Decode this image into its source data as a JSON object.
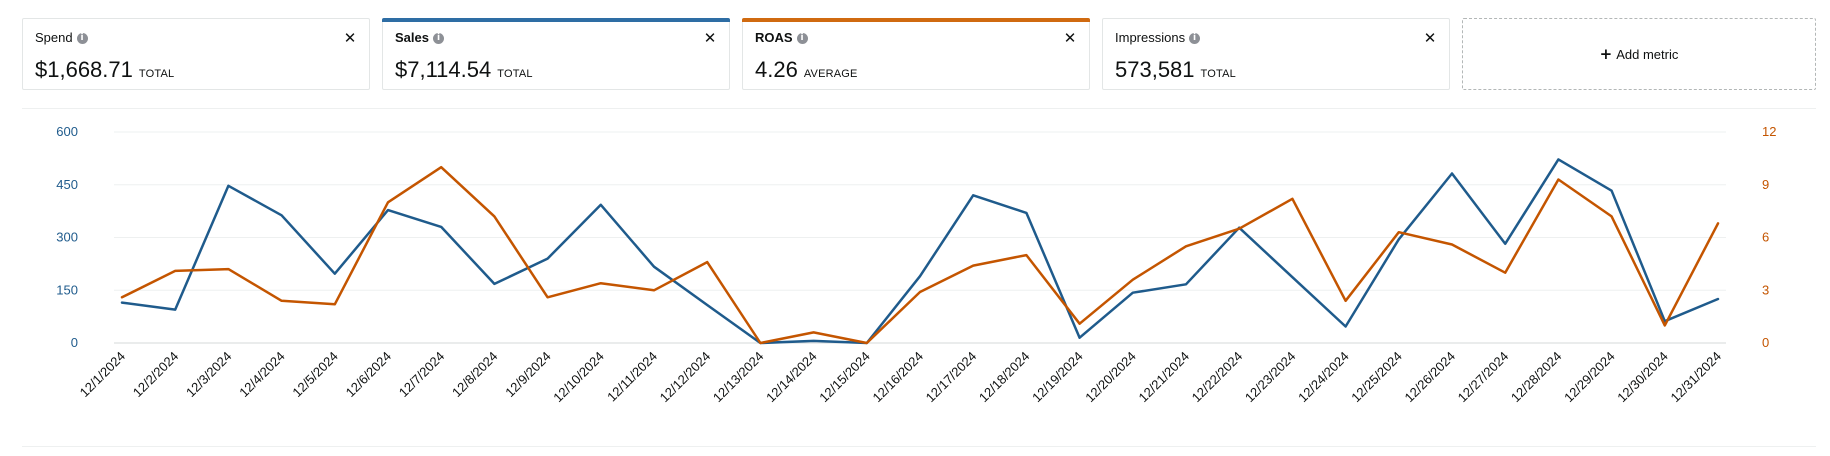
{
  "metrics": [
    {
      "label": "Spend",
      "value": "$1,668.71",
      "suffix": "TOTAL",
      "selected": false,
      "accent": ""
    },
    {
      "label": "Sales",
      "value": "$7,114.54",
      "suffix": "TOTAL",
      "selected": true,
      "accent": "#2e6da4"
    },
    {
      "label": "ROAS",
      "value": "4.26",
      "suffix": "AVERAGE",
      "selected": true,
      "accent": "#d06a10"
    },
    {
      "label": "Impressions",
      "value": "573,581",
      "suffix": "TOTAL",
      "selected": false,
      "accent": ""
    }
  ],
  "add_metric_label": "Add metric",
  "icons": {
    "info": "info-icon",
    "close": "close-icon",
    "add": "plus-icon"
  },
  "chart_data": {
    "type": "line",
    "categories": [
      "12/1/2024",
      "12/2/2024",
      "12/3/2024",
      "12/4/2024",
      "12/5/2024",
      "12/6/2024",
      "12/7/2024",
      "12/8/2024",
      "12/9/2024",
      "12/10/2024",
      "12/11/2024",
      "12/12/2024",
      "12/13/2024",
      "12/14/2024",
      "12/15/2024",
      "12/16/2024",
      "12/17/2024",
      "12/18/2024",
      "12/19/2024",
      "12/20/2024",
      "12/21/2024",
      "12/22/2024",
      "12/23/2024",
      "12/24/2024",
      "12/25/2024",
      "12/26/2024",
      "12/27/2024",
      "12/28/2024",
      "12/29/2024",
      "12/30/2024",
      "12/31/2024"
    ],
    "series": [
      {
        "name": "Sales",
        "axis": "left",
        "color": "#1f5b8c",
        "values": [
          115,
          95,
          447,
          363,
          197,
          378,
          330,
          168,
          240,
          393,
          217,
          108,
          0,
          6,
          0,
          190,
          420,
          370,
          15,
          143,
          167,
          328,
          187,
          47,
          295,
          482,
          282,
          522,
          433,
          62,
          125
        ]
      },
      {
        "name": "ROAS",
        "axis": "right",
        "color": "#c45500",
        "values": [
          2.6,
          4.1,
          4.2,
          2.4,
          2.2,
          8.0,
          10.0,
          7.2,
          2.6,
          3.4,
          3.0,
          4.6,
          0,
          0.6,
          0,
          2.9,
          4.4,
          5.0,
          1.1,
          3.6,
          5.5,
          6.5,
          8.2,
          2.4,
          6.3,
          5.6,
          4.0,
          9.3,
          7.2,
          1.0,
          6.8
        ]
      }
    ],
    "left_axis": {
      "ticks": [
        0,
        150,
        300,
        450,
        600
      ],
      "ylim": [
        0,
        600
      ],
      "color": "#1f5b8c"
    },
    "right_axis": {
      "ticks": [
        0,
        3,
        6,
        9,
        12
      ],
      "ylim": [
        0,
        12
      ],
      "color": "#c45500"
    },
    "grid": true
  }
}
